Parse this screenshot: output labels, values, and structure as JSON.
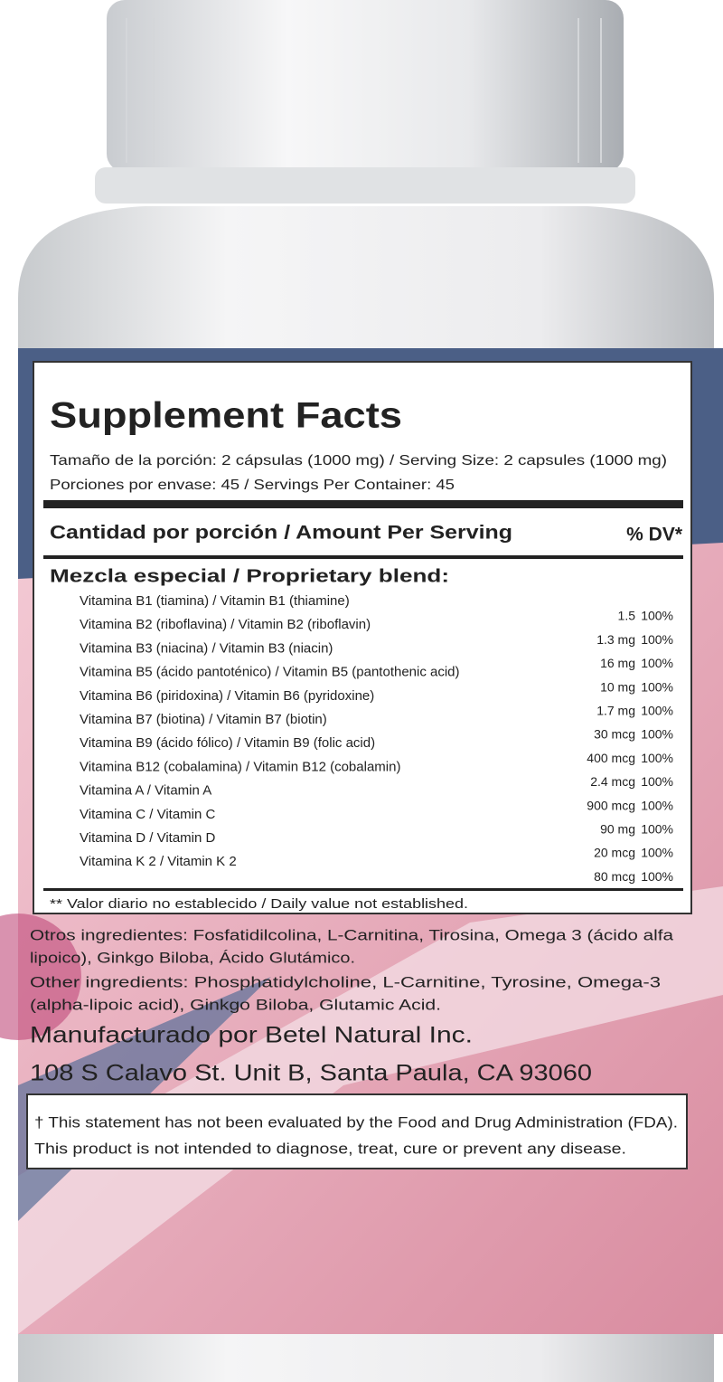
{
  "title": "Supplement Facts",
  "serving_size": "Tamaño de la porción: 2 cápsulas (1000 mg) / Serving Size: 2 capsules (1000 mg)",
  "servings_per_container": "Porciones por envase: 45 / Servings Per Container: 45",
  "amount_header": "Cantidad por porción / Amount Per Serving",
  "dv_header": "% DV*",
  "blend_title": "Mezcla especial  / Proprietary blend:",
  "rows": [
    [
      "Vitamina B1 (tiamina) / Vitamin B1 (thiamine)",
      "1.5",
      "100%"
    ],
    [
      "Vitamina B2 (riboflavina) / Vitamin B2 (riboflavin)",
      "1.3 mg",
      "100%"
    ],
    [
      "Vitamina B3 (niacina) / Vitamin B3 (niacin)",
      "16 mg",
      "100%"
    ],
    [
      "Vitamina B5 (ácido pantoténico) / Vitamin B5 (pantothenic acid)",
      "10 mg",
      "100%"
    ],
    [
      "Vitamina B6 (piridoxina) / Vitamin B6 (pyridoxine)",
      "1.7 mg",
      "100%"
    ],
    [
      "Vitamina B7 (biotina) / Vitamin B7 (biotin)",
      "30 mcg",
      "100%"
    ],
    [
      "Vitamina B9 (ácido fólico) / Vitamin B9 (folic acid)",
      "400 mcg",
      "100%"
    ],
    [
      "Vitamina B12 (cobalamina) / Vitamin B12 (cobalamin)",
      "2.4 mcg",
      "100%"
    ],
    [
      "Vitamina A / Vitamin A",
      "900 mcg",
      "100%"
    ],
    [
      "Vitamina C / Vitamin C",
      "90 mg",
      "100%"
    ],
    [
      "Vitamina D / Vitamin D",
      "20 mcg",
      "100%"
    ],
    [
      "Vitamina K 2 / Vitamin K 2",
      "80 mcg",
      "100%"
    ]
  ],
  "footnote": "** Valor diario no establecido / Daily value not established.",
  "other_es": [
    "Otros ingredientes: Fosfatidilcolina, L-Carnitina, Tirosina, Omega 3 (ácido alfa",
    "lipoico), Ginkgo Biloba, Ácido Glutámico."
  ],
  "other_en": [
    "Other ingredients: Phosphatidylcholine, L-Carnitine, Tyrosine, Omega-3",
    "(alpha-lipoic acid), Ginkgo Biloba, Glutamic Acid."
  ],
  "manufacturer": "Manufacturado por Betel Natural Inc.",
  "address": "108 S Calavo St. Unit B, Santa Paula, CA 93060",
  "disclaimer": [
    "† This statement has not been evaluated by the Food and Drug Administration (FDA).",
    "This product is not intended to diagnose, treat, cure or prevent any disease."
  ]
}
